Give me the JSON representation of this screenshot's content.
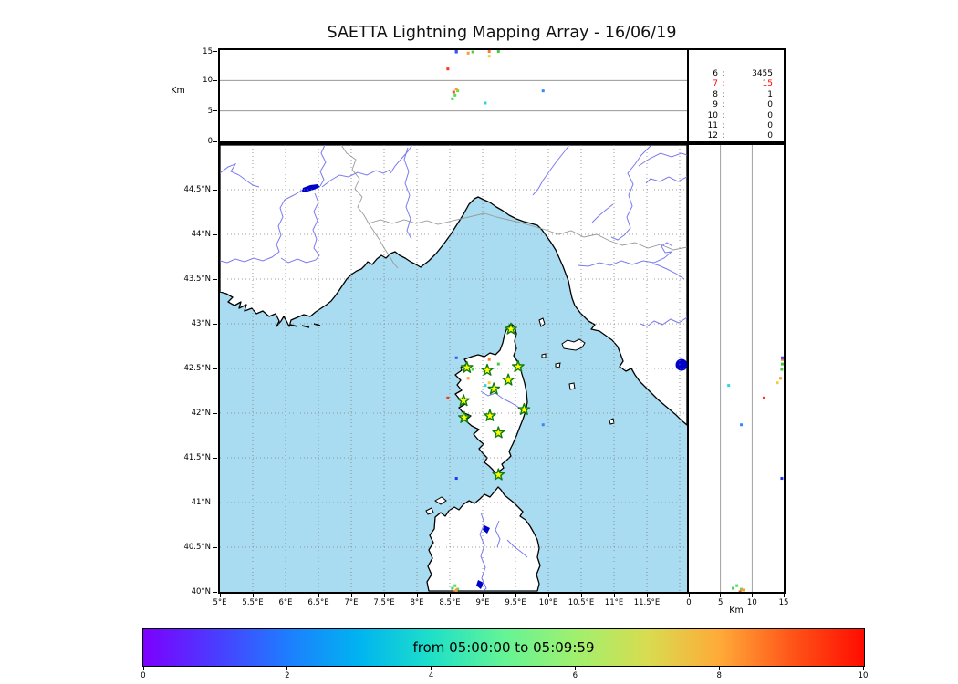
{
  "title": "SAETTA Lightning Mapping Array - 16/06/19",
  "colors": {
    "sea": "#a9dcf0",
    "land": "#ffffff",
    "coast": "#000000",
    "river": "#7a7af0",
    "admin_border": "#999999",
    "grid": "#7f7f7f",
    "lake": "#0000cc",
    "station_fill": "#ffff00",
    "station_edge": "#0e7c0e",
    "stats_highlight": "#ff0000"
  },
  "stats": {
    "rows": [
      [
        "6",
        "3455"
      ],
      [
        "7",
        "15"
      ],
      [
        "8",
        "1"
      ],
      [
        "9",
        "0"
      ],
      [
        "10",
        "0"
      ],
      [
        "11",
        "0"
      ],
      [
        "12",
        "0"
      ]
    ],
    "highlight_index": 1
  },
  "colorbar": {
    "label": "from 05:00:00 to 05:09:59",
    "ticks": [
      0,
      2,
      4,
      6,
      8,
      10
    ],
    "range": [
      0,
      10
    ],
    "gradient": [
      "#7d00ff",
      "#4b3cff",
      "#1e7dff",
      "#00b4f0",
      "#1ee0c8",
      "#64f496",
      "#a0f06e",
      "#d8dc50",
      "#ffaa38",
      "#ff5519",
      "#ff0c00"
    ]
  },
  "chart_data": {
    "type": "scatter",
    "title": "SAETTA Lightning Mapping Array - 16/06/19",
    "panels": {
      "altitude_vs_longitude": {
        "ylabel": "Km",
        "ylim": [
          0,
          15
        ],
        "yticks": [
          0,
          5,
          10,
          15
        ],
        "grid_y": [
          5,
          10
        ]
      },
      "map": {
        "lon_ticks": [
          "5°E",
          "5.5°E",
          "6°E",
          "6.5°E",
          "7°E",
          "7.5°E",
          "8°E",
          "8.5°E",
          "9°E",
          "9.5°E",
          "10°E",
          "10.5°E",
          "11°E",
          "11.5°E"
        ],
        "lat_ticks": [
          "40°N",
          "40.5°N",
          "41°N",
          "41.5°N",
          "42°N",
          "42.5°N",
          "43°N",
          "43.5°N",
          "44°N",
          "44.5°N"
        ],
        "lon_range": [
          5,
          12.11
        ],
        "lat_range": [
          40,
          45.02
        ]
      },
      "altitude_vs_latitude": {
        "xlabel": "Km",
        "xlim": [
          0,
          15
        ],
        "xticks": [
          0,
          5,
          10,
          15
        ],
        "grid_x": [
          5,
          10
        ]
      }
    },
    "stations_lon_lat": [
      [
        9.43,
        42.94
      ],
      [
        8.76,
        42.51
      ],
      [
        9.07,
        42.48
      ],
      [
        9.54,
        42.52
      ],
      [
        9.39,
        42.37
      ],
      [
        9.17,
        42.27
      ],
      [
        8.71,
        42.14
      ],
      [
        9.63,
        42.04
      ],
      [
        9.11,
        41.97
      ],
      [
        8.72,
        41.95
      ],
      [
        9.24,
        41.78
      ],
      [
        9.24,
        41.31
      ]
    ],
    "sources": [
      {
        "lon": 8.54,
        "lat": 40.04,
        "alt_km": 7.0,
        "color": "#44d455"
      },
      {
        "lon": 8.58,
        "lat": 40.07,
        "alt_km": 7.6,
        "color": "#55dd55"
      },
      {
        "lon": 8.62,
        "lat": 40.03,
        "alt_km": 8.3,
        "color": "#66dd44"
      },
      {
        "lon": 8.56,
        "lat": 40.0,
        "alt_km": 8.1,
        "color": "#ff4422"
      },
      {
        "lon": 8.6,
        "lat": 40.02,
        "alt_km": 8.6,
        "color": "#ff9933"
      },
      {
        "lon": 9.04,
        "lat": 42.31,
        "alt_km": 6.3,
        "color": "#2fd5d5"
      },
      {
        "lon": 9.92,
        "lat": 41.87,
        "alt_km": 8.3,
        "color": "#3388ff"
      },
      {
        "lon": 8.47,
        "lat": 42.17,
        "alt_km": 11.9,
        "color": "#ff3311"
      },
      {
        "lon": 8.78,
        "lat": 42.39,
        "alt_km": 14.5,
        "color": "#ff9933"
      },
      {
        "lon": 9.1,
        "lat": 42.34,
        "alt_km": 14.0,
        "color": "#eecc44"
      },
      {
        "lon": 8.85,
        "lat": 42.49,
        "alt_km": 14.7,
        "color": "#55cc44"
      },
      {
        "lon": 8.6,
        "lat": 41.27,
        "alt_km": 14.7,
        "color": "#2233ee"
      },
      {
        "lon": 9.1,
        "lat": 42.6,
        "alt_km": 15.0,
        "color": "#ff7733"
      },
      {
        "lon": 9.24,
        "lat": 42.55,
        "alt_km": 15.0,
        "color": "#44cc44"
      },
      {
        "lon": 8.6,
        "lat": 42.62,
        "alt_km": 15.0,
        "color": "#3355ff"
      }
    ]
  }
}
